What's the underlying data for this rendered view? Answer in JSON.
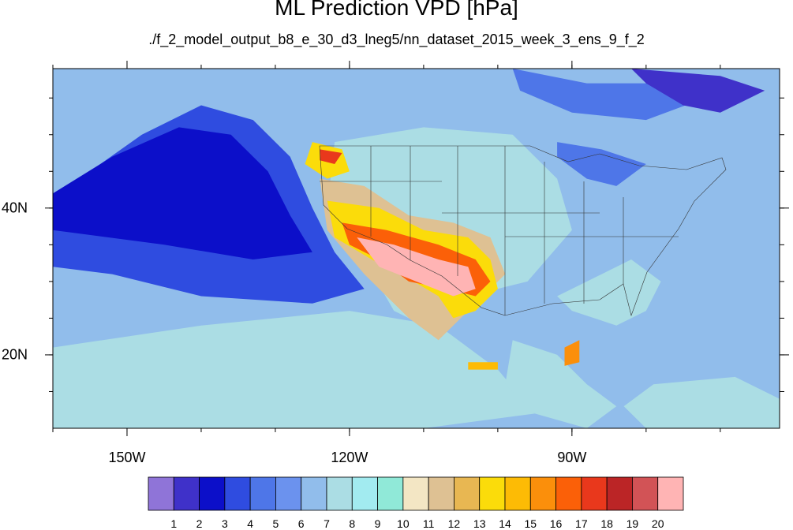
{
  "title": "ML Prediction VPD [hPa]",
  "subtitle": "./f_2_model_output_b8_e_30_d3_lneg5/nn_dataset_2015_week_3_ens_9_f_2",
  "map": {
    "lon_range": [
      -160,
      -62
    ],
    "lat_range": [
      10,
      59
    ],
    "lon_ticks": [
      {
        "value": -150,
        "label": "150W"
      },
      {
        "value": -120,
        "label": "120W"
      },
      {
        "value": -90,
        "label": "90W"
      }
    ],
    "lat_ticks": [
      {
        "value": 40,
        "label": "40N"
      },
      {
        "value": 20,
        "label": "20N"
      }
    ],
    "background_level": 6
  },
  "colorbar": {
    "labels": [
      "1",
      "2",
      "3",
      "4",
      "5",
      "6",
      "7",
      "8",
      "9",
      "10",
      "11",
      "12",
      "13",
      "14",
      "15",
      "16",
      "17",
      "18",
      "19",
      "20"
    ],
    "colors": [
      "#8f74d8",
      "#3f31c9",
      "#0c0fc9",
      "#2f4ce0",
      "#4e76e8",
      "#6b92ee",
      "#91bdeb",
      "#abdde4",
      "#a2ebf0",
      "#90e9d8",
      "#f3e6c4",
      "#dec193",
      "#e8b752",
      "#fbdc0a",
      "#fdbb05",
      "#fb8f0b",
      "#fb6008",
      "#e9381c",
      "#bb2526",
      "#d25356",
      "#ffb4b4"
    ]
  },
  "chart_data": {
    "type": "heatmap",
    "variable": "VPD [hPa]",
    "regions": [
      {
        "level": 3,
        "points": [
          [
            -160,
            40
          ],
          [
            -155,
            45
          ],
          [
            -148,
            50
          ],
          [
            -140,
            54
          ],
          [
            -133,
            52
          ],
          [
            -128,
            47
          ],
          [
            -125,
            40
          ],
          [
            -122,
            34
          ],
          [
            -118,
            29
          ],
          [
            -125,
            27
          ],
          [
            -140,
            28
          ],
          [
            -152,
            31
          ],
          [
            -160,
            32
          ]
        ]
      },
      {
        "level": 2,
        "points": [
          [
            -160,
            42
          ],
          [
            -152,
            47
          ],
          [
            -143,
            51
          ],
          [
            -136,
            50
          ],
          [
            -131,
            45
          ],
          [
            -128,
            39
          ],
          [
            -125,
            34
          ],
          [
            -133,
            33
          ],
          [
            -145,
            35
          ],
          [
            -160,
            37
          ]
        ]
      },
      {
        "level": 4,
        "points": [
          [
            -98,
            59
          ],
          [
            -88,
            57
          ],
          [
            -78,
            57
          ],
          [
            -72,
            55
          ],
          [
            -80,
            52
          ],
          [
            -90,
            53
          ],
          [
            -97,
            56
          ]
        ]
      },
      {
        "level": 1,
        "points": [
          [
            -82,
            59
          ],
          [
            -70,
            58
          ],
          [
            -64,
            56
          ],
          [
            -70,
            53
          ],
          [
            -75,
            54
          ],
          [
            -80,
            57
          ]
        ]
      },
      {
        "level": 4,
        "points": [
          [
            -92,
            49
          ],
          [
            -86,
            48
          ],
          [
            -80,
            46
          ],
          [
            -84,
            43
          ],
          [
            -88,
            44
          ],
          [
            -92,
            47
          ]
        ]
      },
      {
        "level": 7,
        "points": [
          [
            -160,
            21
          ],
          [
            -140,
            24
          ],
          [
            -120,
            26
          ],
          [
            -108,
            24
          ],
          [
            -100,
            18
          ],
          [
            -95,
            12
          ],
          [
            -110,
            10
          ],
          [
            -140,
            10
          ],
          [
            -160,
            10
          ]
        ]
      },
      {
        "level": 7,
        "points": [
          [
            -122,
            49
          ],
          [
            -110,
            51
          ],
          [
            -98,
            50
          ],
          [
            -92,
            44
          ],
          [
            -90,
            37
          ],
          [
            -96,
            30
          ],
          [
            -104,
            28
          ],
          [
            -110,
            24
          ],
          [
            -114,
            26
          ],
          [
            -118,
            33
          ],
          [
            -123,
            40
          ]
        ]
      },
      {
        "level": 7,
        "points": [
          [
            -98,
            22
          ],
          [
            -92,
            20
          ],
          [
            -88,
            16
          ],
          [
            -84,
            13
          ],
          [
            -88,
            10
          ],
          [
            -95,
            12
          ],
          [
            -99,
            16
          ]
        ]
      },
      {
        "level": 7,
        "points": [
          [
            -92,
            28
          ],
          [
            -82,
            33
          ],
          [
            -78,
            30
          ],
          [
            -80,
            26
          ],
          [
            -84,
            24
          ],
          [
            -90,
            26
          ]
        ]
      },
      {
        "level": 7,
        "points": [
          [
            -79,
            16
          ],
          [
            -68,
            17
          ],
          [
            -62,
            14
          ],
          [
            -62,
            10
          ],
          [
            -80,
            10
          ],
          [
            -83,
            13
          ]
        ]
      },
      {
        "level": 11,
        "points": [
          [
            -124,
            44
          ],
          [
            -118,
            43
          ],
          [
            -112,
            39
          ],
          [
            -106,
            38
          ],
          [
            -101,
            36
          ],
          [
            -99,
            31
          ],
          [
            -104,
            26
          ],
          [
            -108,
            22
          ],
          [
            -112,
            25
          ],
          [
            -118,
            31
          ],
          [
            -123,
            37
          ]
        ]
      },
      {
        "level": 13,
        "points": [
          [
            -123,
            41
          ],
          [
            -116,
            40
          ],
          [
            -110,
            37
          ],
          [
            -104,
            36
          ],
          [
            -101,
            33
          ],
          [
            -100,
            29
          ],
          [
            -103,
            26
          ],
          [
            -106,
            25
          ],
          [
            -108,
            28
          ],
          [
            -113,
            31
          ],
          [
            -117,
            33
          ],
          [
            -122,
            36
          ]
        ]
      },
      {
        "level": 16,
        "points": [
          [
            -121,
            38
          ],
          [
            -115,
            37
          ],
          [
            -108,
            35
          ],
          [
            -103,
            33
          ],
          [
            -101,
            30
          ],
          [
            -103,
            28
          ],
          [
            -107,
            29
          ],
          [
            -112,
            30
          ],
          [
            -116,
            33
          ],
          [
            -120,
            35
          ]
        ]
      },
      {
        "level": 20,
        "points": [
          [
            -119,
            36
          ],
          [
            -114,
            35
          ],
          [
            -108,
            33
          ],
          [
            -104,
            32
          ],
          [
            -103,
            29
          ],
          [
            -106,
            28
          ],
          [
            -111,
            30
          ],
          [
            -116,
            32
          ]
        ]
      },
      {
        "level": 13,
        "points": [
          [
            -125,
            49
          ],
          [
            -121,
            48
          ],
          [
            -120,
            45
          ],
          [
            -123,
            44
          ],
          [
            -126,
            46
          ]
        ]
      },
      {
        "level": 17,
        "points": [
          [
            -124,
            48
          ],
          [
            -121,
            47.5
          ],
          [
            -122,
            46
          ],
          [
            -124,
            46.5
          ]
        ]
      },
      {
        "level": 15,
        "points": [
          [
            -91,
            21
          ],
          [
            -89,
            22
          ],
          [
            -89,
            19
          ],
          [
            -91,
            18.5
          ]
        ]
      },
      {
        "level": 14,
        "points": [
          [
            -104,
            19
          ],
          [
            -100,
            19
          ],
          [
            -100,
            18
          ],
          [
            -104,
            18
          ]
        ]
      }
    ]
  }
}
